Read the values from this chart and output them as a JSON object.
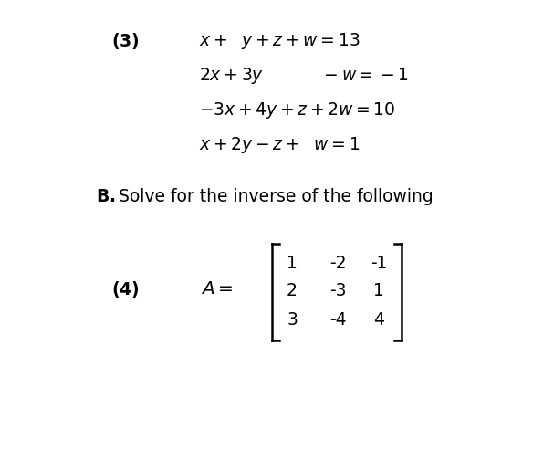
{
  "background_color": "#ffffff",
  "fig_width": 5.84,
  "fig_height": 5.04,
  "dpi": 100,
  "problem3_label": "(3)",
  "eq1": "$x +\\ \\ y + z + w = 13$",
  "eq2": "$2x + 3y \\qquad\\quad - w = -1$",
  "eq3": "$-3x + 4y + z + 2w = 10$",
  "eq4": "$x + 2y - z +\\ \\ w = 1$",
  "section_b": "Solve for the inverse of the following",
  "problem4_label": "(4)",
  "matrix_label": "$A =$",
  "matrix": [
    [
      1,
      -2,
      -1
    ],
    [
      2,
      -3,
      1
    ],
    [
      3,
      -4,
      4
    ]
  ],
  "text_color": "#000000",
  "font_size_main": 13.5,
  "font_size_label": 13.5
}
